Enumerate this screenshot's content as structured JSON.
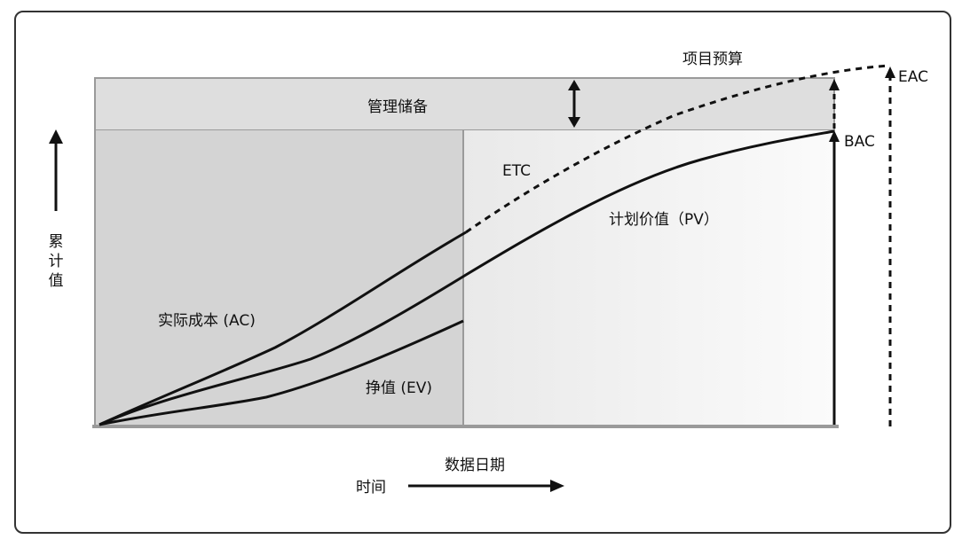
{
  "chart_data": {
    "type": "line",
    "title": "",
    "xlabel": "时间",
    "ylabel": "累计值",
    "data_date_label": "数据日期",
    "management_reserve_label": "管理储备",
    "project_budget_label": "项目预算",
    "curve_labels": {
      "ac": "实际成本 (AC)",
      "ev": "挣值 (EV)",
      "pv": "计划价值（PV）",
      "etc": "ETC",
      "bac": "BAC",
      "eac": "EAC"
    },
    "colors": {
      "curve": "#111111",
      "left_region": "#d4d4d4",
      "right_region": "#f2f2f2",
      "reserve_band": "#dedede",
      "axis": "#999999"
    }
  }
}
